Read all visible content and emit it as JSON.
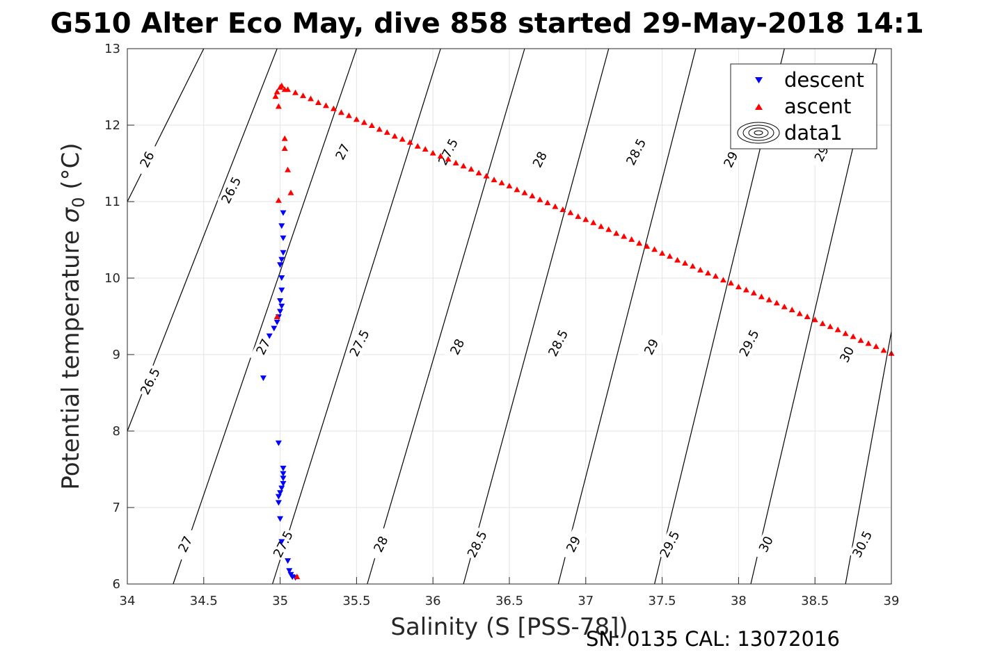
{
  "chart_data": {
    "type": "scatter",
    "title": "G510 Alter Eco May, dive 858 started 29-May-2018 14:1",
    "xlabel": "Salinity (S [PSS-78])",
    "ylabel_text": "Potential temperature ",
    "ylabel_sigma": "σ",
    "ylabel_sub": "0",
    "ylabel_unit": " (°C)",
    "xlim": [
      34,
      39
    ],
    "ylim": [
      6,
      13
    ],
    "xticks": [
      34,
      34.5,
      35,
      35.5,
      36,
      36.5,
      37,
      37.5,
      38,
      38.5,
      39
    ],
    "xtick_labels": [
      "34",
      "34.5",
      "35",
      "35.5",
      "36",
      "36.5",
      "37",
      "37.5",
      "38",
      "38.5",
      "39"
    ],
    "yticks": [
      6,
      7,
      8,
      9,
      10,
      11,
      12,
      13
    ],
    "ytick_labels": [
      "6",
      "7",
      "8",
      "9",
      "10",
      "11",
      "12",
      "13"
    ],
    "grid": true,
    "legend_position": "top-right",
    "series": [
      {
        "name": "descent",
        "marker": "triangle-down",
        "color": "#0000ff",
        "points": [
          [
            35.02,
            10.85
          ],
          [
            35.01,
            10.68
          ],
          [
            35.02,
            10.52
          ],
          [
            35.02,
            10.33
          ],
          [
            35.01,
            10.24
          ],
          [
            35.0,
            10.17
          ],
          [
            35.01,
            10.0
          ],
          [
            35.01,
            9.84
          ],
          [
            35.0,
            9.7
          ],
          [
            35.01,
            9.63
          ],
          [
            35.0,
            9.56
          ],
          [
            34.99,
            9.49
          ],
          [
            34.98,
            9.42
          ],
          [
            34.96,
            9.34
          ],
          [
            34.93,
            9.24
          ],
          [
            34.89,
            8.69
          ],
          [
            34.99,
            7.84
          ],
          [
            35.02,
            7.51
          ],
          [
            35.02,
            7.44
          ],
          [
            35.02,
            7.38
          ],
          [
            35.02,
            7.31
          ],
          [
            35.01,
            7.25
          ],
          [
            35.0,
            7.19
          ],
          [
            34.99,
            7.14
          ],
          [
            34.99,
            7.06
          ],
          [
            35.0,
            6.85
          ],
          [
            35.01,
            6.55
          ],
          [
            35.05,
            6.3
          ],
          [
            35.06,
            6.17
          ],
          [
            35.07,
            6.12
          ],
          [
            35.08,
            6.09
          ],
          [
            35.1,
            6.08
          ]
        ]
      },
      {
        "name": "ascent",
        "marker": "triangle-up",
        "color": "#ff0000",
        "points": [
          [
            35.11,
            6.1
          ],
          [
            34.98,
            9.5
          ],
          [
            34.99,
            11.02
          ],
          [
            35.07,
            11.12
          ],
          [
            35.05,
            11.42
          ],
          [
            35.03,
            11.7
          ],
          [
            35.03,
            11.83
          ],
          [
            34.99,
            12.25
          ],
          [
            34.97,
            12.38
          ],
          [
            34.98,
            12.44
          ],
          [
            35.0,
            12.5
          ],
          [
            35.01,
            12.52
          ],
          [
            35.03,
            12.47
          ],
          [
            35.05,
            12.47
          ],
          [
            35.1,
            12.43
          ],
          [
            35.15,
            12.39
          ],
          [
            35.2,
            12.35
          ],
          [
            35.25,
            12.3
          ],
          [
            35.3,
            12.26
          ],
          [
            35.35,
            12.22
          ],
          [
            35.4,
            12.17
          ],
          [
            35.45,
            12.13
          ],
          [
            35.5,
            12.08
          ],
          [
            35.55,
            12.04
          ],
          [
            35.6,
            12.0
          ],
          [
            35.65,
            11.95
          ],
          [
            35.7,
            11.91
          ],
          [
            35.75,
            11.86
          ],
          [
            35.8,
            11.82
          ],
          [
            35.85,
            11.78
          ],
          [
            35.9,
            11.73
          ],
          [
            35.95,
            11.69
          ],
          [
            36.0,
            11.64
          ],
          [
            36.05,
            11.6
          ],
          [
            36.1,
            11.56
          ],
          [
            36.15,
            11.51
          ],
          [
            36.2,
            11.47
          ],
          [
            36.25,
            11.43
          ],
          [
            36.3,
            11.38
          ],
          [
            36.35,
            11.34
          ],
          [
            36.4,
            11.29
          ],
          [
            36.45,
            11.25
          ],
          [
            36.5,
            11.21
          ],
          [
            36.55,
            11.16
          ],
          [
            36.6,
            11.12
          ],
          [
            36.65,
            11.08
          ],
          [
            36.7,
            11.03
          ],
          [
            36.75,
            10.99
          ],
          [
            36.8,
            10.94
          ],
          [
            36.85,
            10.9
          ],
          [
            36.9,
            10.86
          ],
          [
            36.95,
            10.81
          ],
          [
            37.0,
            10.77
          ],
          [
            37.05,
            10.73
          ],
          [
            37.1,
            10.68
          ],
          [
            37.15,
            10.64
          ],
          [
            37.2,
            10.59
          ],
          [
            37.25,
            10.55
          ],
          [
            37.3,
            10.51
          ],
          [
            37.35,
            10.46
          ],
          [
            37.4,
            10.42
          ],
          [
            37.45,
            10.38
          ],
          [
            37.5,
            10.33
          ],
          [
            37.55,
            10.29
          ],
          [
            37.6,
            10.24
          ],
          [
            37.65,
            10.2
          ],
          [
            37.7,
            10.16
          ],
          [
            37.75,
            10.11
          ],
          [
            37.8,
            10.07
          ],
          [
            37.85,
            10.03
          ],
          [
            37.9,
            9.98
          ],
          [
            37.95,
            9.94
          ],
          [
            38.0,
            9.89
          ],
          [
            38.05,
            9.85
          ],
          [
            38.1,
            9.81
          ],
          [
            38.15,
            9.76
          ],
          [
            38.2,
            9.72
          ],
          [
            38.25,
            9.68
          ],
          [
            38.3,
            9.63
          ],
          [
            38.35,
            9.59
          ],
          [
            38.4,
            9.54
          ],
          [
            38.45,
            9.5
          ],
          [
            38.5,
            9.46
          ],
          [
            38.55,
            9.41
          ],
          [
            38.6,
            9.37
          ],
          [
            38.65,
            9.33
          ],
          [
            38.7,
            9.28
          ],
          [
            38.75,
            9.24
          ],
          [
            38.8,
            9.19
          ],
          [
            38.85,
            9.15
          ],
          [
            38.9,
            9.11
          ],
          [
            38.95,
            9.06
          ],
          [
            39.0,
            9.02
          ]
        ]
      }
    ],
    "contours": {
      "name": "data1",
      "levels": [
        {
          "value": "26",
          "line": [
            [
              34.0,
              11.0
            ],
            [
              34.5,
              13.0
            ]
          ]
        },
        {
          "value": "26.5",
          "line": [
            [
              34.0,
              8.0
            ],
            [
              34.98,
              13.0
            ]
          ]
        },
        {
          "value": "27",
          "line": [
            [
              34.3,
              6.0
            ],
            [
              35.5,
              13.0
            ]
          ]
        },
        {
          "value": "27.5",
          "line": [
            [
              34.95,
              6.0
            ],
            [
              36.05,
              13.0
            ]
          ]
        },
        {
          "value": "28",
          "line": [
            [
              35.57,
              6.0
            ],
            [
              36.6,
              13.0
            ]
          ]
        },
        {
          "value": "28.5",
          "line": [
            [
              36.2,
              6.0
            ],
            [
              37.15,
              13.0
            ]
          ]
        },
        {
          "value": "29",
          "line": [
            [
              36.82,
              6.0
            ],
            [
              37.72,
              13.0
            ]
          ]
        },
        {
          "value": "29.5",
          "line": [
            [
              37.45,
              6.0
            ],
            [
              38.3,
              13.0
            ]
          ]
        },
        {
          "value": "30",
          "line": [
            [
              38.08,
              6.0
            ],
            [
              38.9,
              13.0
            ]
          ]
        },
        {
          "value": "30.5",
          "line": [
            [
              38.7,
              6.0
            ],
            [
              39.0,
              9.3
            ]
          ]
        }
      ],
      "labels": [
        {
          "text": "26",
          "at": [
            34.13,
            11.55
          ]
        },
        {
          "text": "26.5",
          "at": [
            34.15,
            8.65
          ]
        },
        {
          "text": "26.5",
          "at": [
            34.68,
            11.15
          ]
        },
        {
          "text": "27",
          "at": [
            34.38,
            6.52
          ]
        },
        {
          "text": "27",
          "at": [
            34.89,
            9.1
          ]
        },
        {
          "text": "27",
          "at": [
            35.41,
            11.65
          ]
        },
        {
          "text": "27.5",
          "at": [
            35.02,
            6.52
          ]
        },
        {
          "text": "27.5",
          "at": [
            35.52,
            9.15
          ]
        },
        {
          "text": "27.5",
          "at": [
            36.1,
            11.65
          ]
        },
        {
          "text": "28",
          "at": [
            35.66,
            6.52
          ]
        },
        {
          "text": "28",
          "at": [
            36.16,
            9.1
          ]
        },
        {
          "text": "28",
          "at": [
            36.7,
            11.55
          ]
        },
        {
          "text": "28.5",
          "at": [
            36.29,
            6.52
          ]
        },
        {
          "text": "28.5",
          "at": [
            36.82,
            9.15
          ]
        },
        {
          "text": "28.5",
          "at": [
            37.33,
            11.65
          ]
        },
        {
          "text": "29",
          "at": [
            36.92,
            6.52
          ]
        },
        {
          "text": "29",
          "at": [
            37.43,
            9.1
          ]
        },
        {
          "text": "29",
          "at": [
            37.95,
            11.55
          ]
        },
        {
          "text": "29.5",
          "at": [
            37.55,
            6.52
          ]
        },
        {
          "text": "29.5",
          "at": [
            38.07,
            9.15
          ]
        },
        {
          "text": "29.",
          "at": [
            38.55,
            11.65
          ]
        },
        {
          "text": "30",
          "at": [
            38.18,
            6.52
          ]
        },
        {
          "text": "30",
          "at": [
            38.71,
            9.0
          ]
        },
        {
          "text": "30.5",
          "at": [
            38.81,
            6.52
          ]
        }
      ]
    },
    "legend": [
      "descent",
      "ascent",
      "data1"
    ]
  },
  "footer": "SN: 0135  CAL: 13072016"
}
